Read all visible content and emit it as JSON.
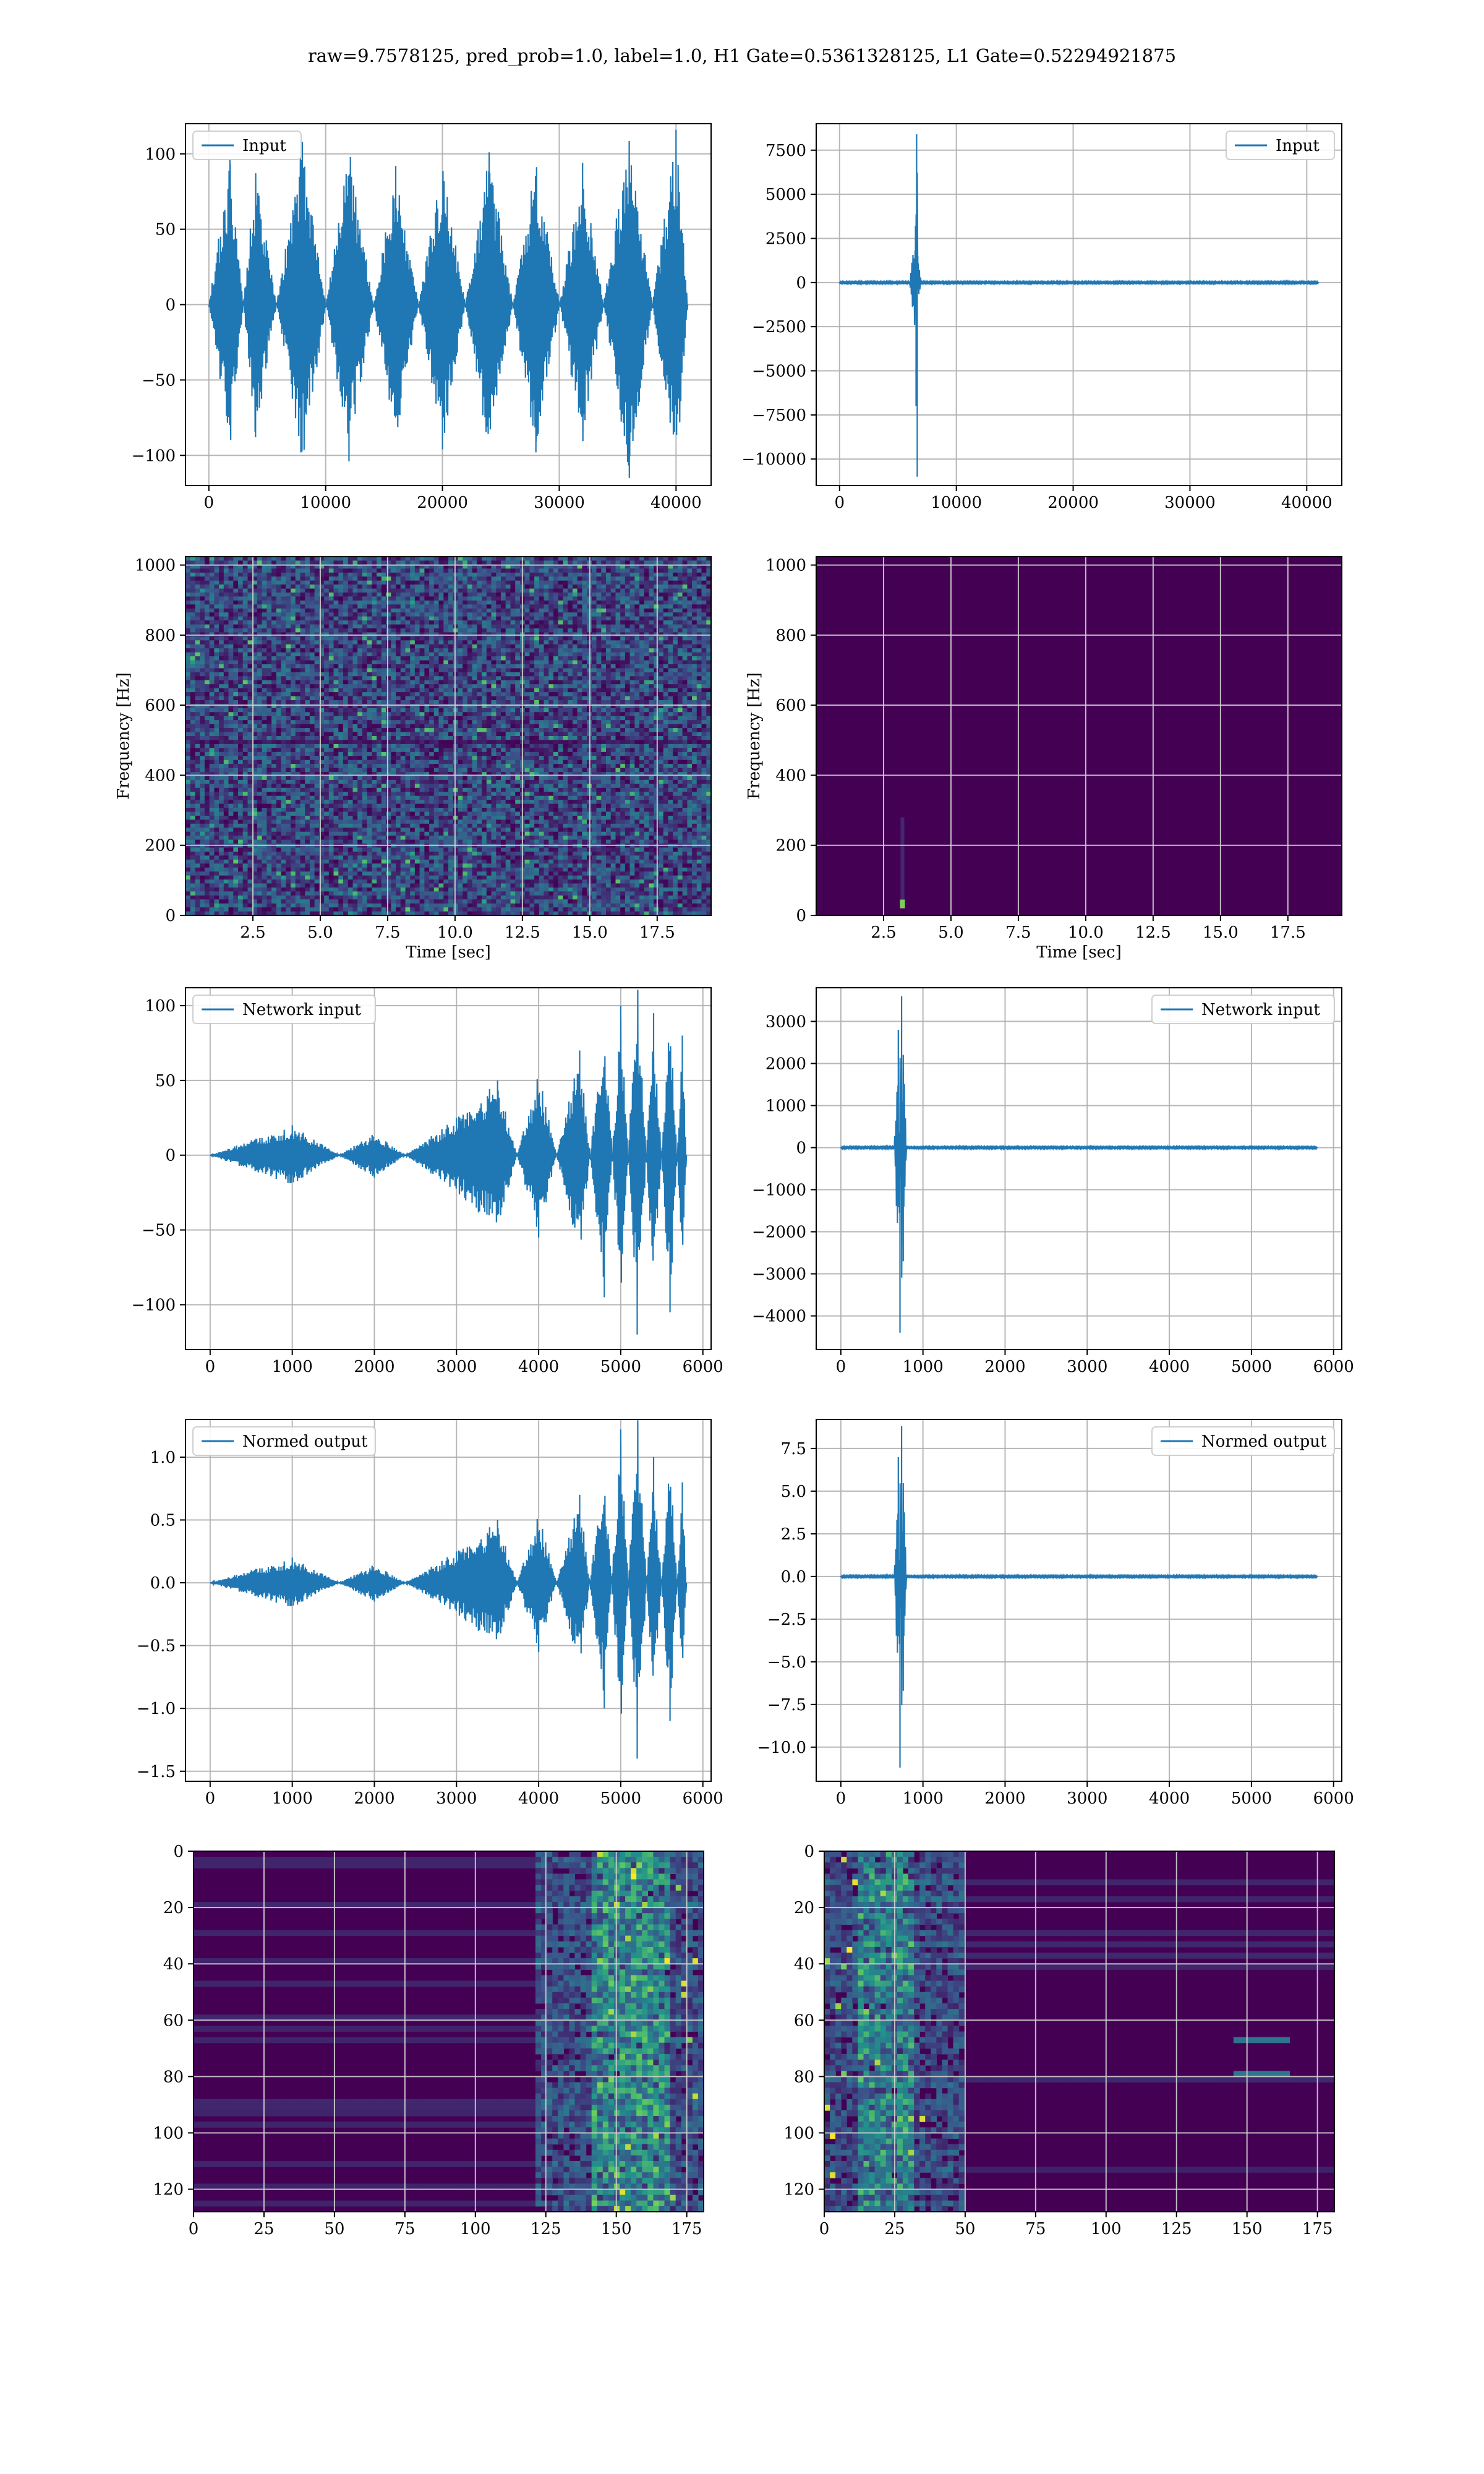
{
  "figure": {
    "title": "raw=9.7578125, pred_prob=1.0, label=1.0, H1 Gate=0.5361328125, L1 Gate=0.52294921875"
  },
  "colors": {
    "line": "#1f77b4",
    "grid": "#b0b0b0",
    "viridis_low": "#440154",
    "viridis_mid": "#21918c",
    "viridis_high": "#fde725"
  },
  "chart_data": [
    {
      "id": "h1-input",
      "type": "line",
      "series": [
        {
          "name": "Input",
          "x": [
            0,
            1800,
            4000,
            8000,
            12000,
            16000,
            20000,
            24000,
            28000,
            32000,
            36000,
            40000,
            41000
          ],
          "y": [
            0,
            96,
            -88,
            108,
            -104,
            92,
            -96,
            101,
            -98,
            94,
            -115,
            116,
            0
          ]
        }
      ],
      "legend": "top-left",
      "xlim": [
        -2000,
        43000
      ],
      "ylim": [
        -120,
        120
      ],
      "xticks": [
        0,
        10000,
        20000,
        30000,
        40000
      ],
      "yticks": [
        -100,
        -50,
        0,
        50,
        100
      ],
      "grid": true
    },
    {
      "id": "l1-input",
      "type": "line",
      "series": [
        {
          "name": "Input",
          "x": [
            0,
            6000,
            6500,
            6550,
            6600,
            6650,
            6700,
            7000,
            10000,
            20000,
            30000,
            41000
          ],
          "y": [
            0,
            0,
            3200,
            -7000,
            8400,
            -11000,
            1500,
            0,
            0,
            0,
            0,
            0
          ]
        }
      ],
      "legend": "top-right",
      "xlim": [
        -2000,
        43000
      ],
      "ylim": [
        -11500,
        9000
      ],
      "xticks": [
        0,
        10000,
        20000,
        30000,
        40000
      ],
      "yticks": [
        -10000,
        -7500,
        -5000,
        -2500,
        0,
        2500,
        5000,
        7500
      ],
      "grid": true
    },
    {
      "id": "h1-spectrogram",
      "type": "heatmap",
      "xlabel": "Time [sec]",
      "ylabel": "Frequency [Hz]",
      "xlim": [
        0,
        19.5
      ],
      "ylim": [
        0,
        1024
      ],
      "xticks": [
        2.5,
        5.0,
        7.5,
        10.0,
        12.5,
        15.0,
        17.5
      ],
      "xtick_labels": [
        "2.5",
        "5.0",
        "7.5",
        "10.0",
        "12.5",
        "15.0",
        "17.5"
      ],
      "yticks": [
        0,
        200,
        400,
        600,
        800,
        1000
      ],
      "grid": true,
      "colormap": "viridis"
    },
    {
      "id": "l1-spectrogram",
      "type": "heatmap",
      "xlabel": "Time [sec]",
      "ylabel": "Frequency [Hz]",
      "xlim": [
        0,
        19.5
      ],
      "ylim": [
        0,
        1024
      ],
      "xticks": [
        2.5,
        5.0,
        7.5,
        10.0,
        12.5,
        15.0,
        17.5
      ],
      "xtick_labels": [
        "2.5",
        "5.0",
        "7.5",
        "10.0",
        "12.5",
        "15.0",
        "17.5"
      ],
      "yticks": [
        0,
        200,
        400,
        600,
        800,
        1000
      ],
      "grid": true,
      "colormap": "viridis"
    },
    {
      "id": "h1-network-input",
      "type": "line",
      "series": [
        {
          "name": "Network input",
          "x": [
            0,
            1000,
            2000,
            3000,
            3500,
            4000,
            4500,
            4800,
            5000,
            5200,
            5400,
            5600,
            5750,
            5800
          ],
          "y": [
            0,
            20,
            -15,
            25,
            50,
            -55,
            70,
            -95,
            100,
            -120,
            95,
            -105,
            80,
            0
          ]
        }
      ],
      "legend": "top-left",
      "xlim": [
        -300,
        6100
      ],
      "ylim": [
        -130,
        112
      ],
      "xticks": [
        0,
        1000,
        2000,
        3000,
        4000,
        5000,
        6000
      ],
      "yticks": [
        -100,
        -50,
        0,
        50,
        100
      ],
      "grid": true
    },
    {
      "id": "l1-network-input",
      "type": "line",
      "series": [
        {
          "name": "Network input",
          "x": [
            0,
            650,
            700,
            720,
            740,
            760,
            800,
            1000,
            3000,
            5000,
            5800
          ],
          "y": [
            0,
            0,
            2800,
            -4400,
            3600,
            -2700,
            0,
            0,
            0,
            0,
            0
          ]
        }
      ],
      "legend": "top-right",
      "xlim": [
        -300,
        6100
      ],
      "ylim": [
        -4800,
        3800
      ],
      "xticks": [
        0,
        1000,
        2000,
        3000,
        4000,
        5000,
        6000
      ],
      "yticks": [
        -4000,
        -3000,
        -2000,
        -1000,
        0,
        1000,
        2000,
        3000
      ],
      "grid": true
    },
    {
      "id": "h1-normed-output",
      "type": "line",
      "series": [
        {
          "name": "Normed output",
          "x": [
            0,
            1000,
            2000,
            3000,
            3500,
            4000,
            4500,
            4800,
            5000,
            5200,
            5400,
            5600,
            5750,
            5800
          ],
          "y": [
            0,
            0.2,
            -0.15,
            0.25,
            0.5,
            -0.55,
            0.7,
            -1.0,
            1.22,
            -1.4,
            1.0,
            -1.1,
            0.8,
            0
          ]
        }
      ],
      "legend": "top-left",
      "xlim": [
        -300,
        6100
      ],
      "ylim": [
        -1.58,
        1.3
      ],
      "xticks": [
        0,
        1000,
        2000,
        3000,
        4000,
        5000,
        6000
      ],
      "yticks": [
        -1.5,
        -1.0,
        -0.5,
        0.0,
        0.5,
        1.0
      ],
      "ytick_labels": [
        "−1.5",
        "−1.0",
        "−0.5",
        "0.0",
        "0.5",
        "1.0"
      ],
      "grid": true
    },
    {
      "id": "l1-normed-output",
      "type": "line",
      "series": [
        {
          "name": "Normed output",
          "x": [
            0,
            650,
            700,
            720,
            740,
            760,
            800,
            1000,
            3000,
            5000,
            5800
          ],
          "y": [
            0,
            0,
            7.0,
            -11.2,
            8.8,
            -6.7,
            0,
            0,
            0,
            0,
            0
          ]
        }
      ],
      "legend": "top-right",
      "xlim": [
        -300,
        6100
      ],
      "ylim": [
        -12,
        9.2
      ],
      "xticks": [
        0,
        1000,
        2000,
        3000,
        4000,
        5000,
        6000
      ],
      "yticks": [
        -10.0,
        -7.5,
        -5.0,
        -2.5,
        0.0,
        2.5,
        5.0,
        7.5
      ],
      "ytick_labels": [
        "−10.0",
        "−7.5",
        "−5.0",
        "−2.5",
        "0.0",
        "2.5",
        "5.0",
        "7.5"
      ],
      "grid": true
    },
    {
      "id": "h1-feature-map",
      "type": "heatmap",
      "xlim": [
        0,
        181
      ],
      "ylim": [
        128,
        0
      ],
      "xticks": [
        0,
        25,
        50,
        75,
        100,
        125,
        150,
        175
      ],
      "yticks": [
        0,
        20,
        40,
        60,
        80,
        100,
        120
      ],
      "grid": true,
      "colormap": "viridis"
    },
    {
      "id": "l1-feature-map",
      "type": "heatmap",
      "xlim": [
        0,
        181
      ],
      "ylim": [
        128,
        0
      ],
      "xticks": [
        0,
        25,
        50,
        75,
        100,
        125,
        150,
        175
      ],
      "yticks": [
        0,
        20,
        40,
        60,
        80,
        100,
        120
      ],
      "grid": true,
      "colormap": "viridis"
    }
  ]
}
